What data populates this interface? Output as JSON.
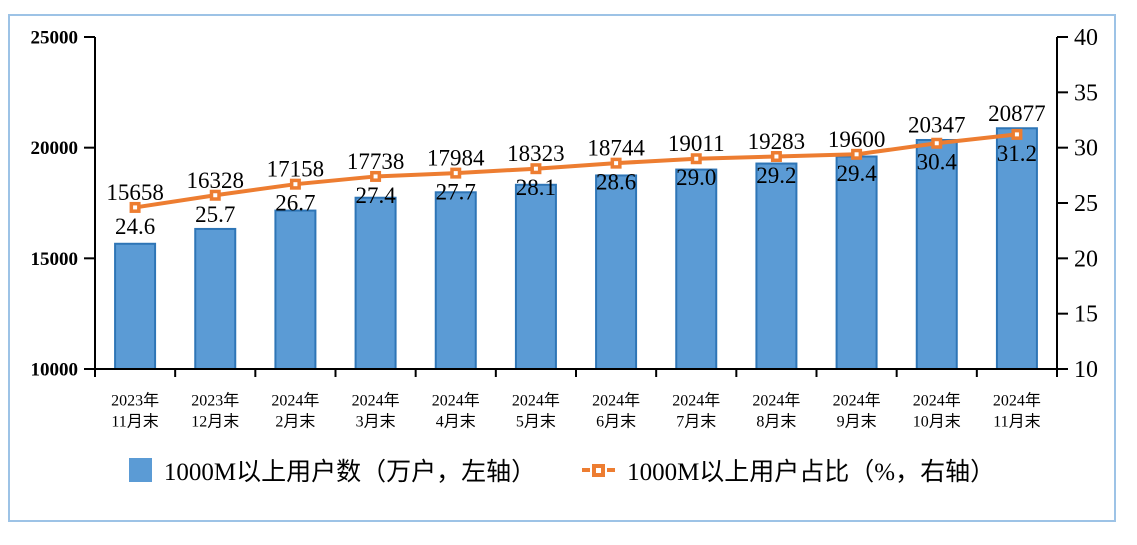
{
  "chart_data": {
    "type": "combo-bar-line",
    "title": "",
    "grid": false,
    "legend_position": "bottom",
    "categories": [
      {
        "line1": "2023年",
        "line2": "11月末"
      },
      {
        "line1": "2023年",
        "line2": "12月末"
      },
      {
        "line1": "2024年",
        "line2": "2月末"
      },
      {
        "line1": "2024年",
        "line2": "3月末"
      },
      {
        "line1": "2024年",
        "line2": "4月末"
      },
      {
        "line1": "2024年",
        "line2": "5月末"
      },
      {
        "line1": "2024年",
        "line2": "6月末"
      },
      {
        "line1": "2024年",
        "line2": "7月末"
      },
      {
        "line1": "2024年",
        "line2": "8月末"
      },
      {
        "line1": "2024年",
        "line2": "9月末"
      },
      {
        "line1": "2024年",
        "line2": "10月末"
      },
      {
        "line1": "2024年",
        "line2": "11月末"
      }
    ],
    "series": [
      {
        "name": "1000M以上用户数（万户，左轴）",
        "type": "bar",
        "axis": "left",
        "values": [
          15658,
          16328,
          17158,
          17738,
          17984,
          18323,
          18744,
          19011,
          19283,
          19600,
          20347,
          20877
        ]
      },
      {
        "name": "1000M以上用户占比（%，右轴）",
        "type": "line",
        "axis": "right",
        "values": [
          24.6,
          25.7,
          26.7,
          27.4,
          27.7,
          28.1,
          28.6,
          29.0,
          29.2,
          29.4,
          30.4,
          31.2
        ]
      }
    ],
    "left_axis": {
      "min": 10000,
      "max": 25000,
      "ticks": [
        25000,
        20000,
        15000,
        10000
      ]
    },
    "right_axis": {
      "min": 10,
      "max": 40,
      "ticks": [
        40,
        35,
        30,
        25,
        20,
        15,
        10
      ]
    },
    "colors": {
      "bar_fill": "#5B9BD5",
      "bar_border": "#2E75B6",
      "line": "#ED7D31",
      "marker_fill": "#ED7D31",
      "marker_center": "#FFFFFF",
      "frame_border": "#9DC3E6",
      "axis": "#000000",
      "text": "#000000"
    }
  }
}
